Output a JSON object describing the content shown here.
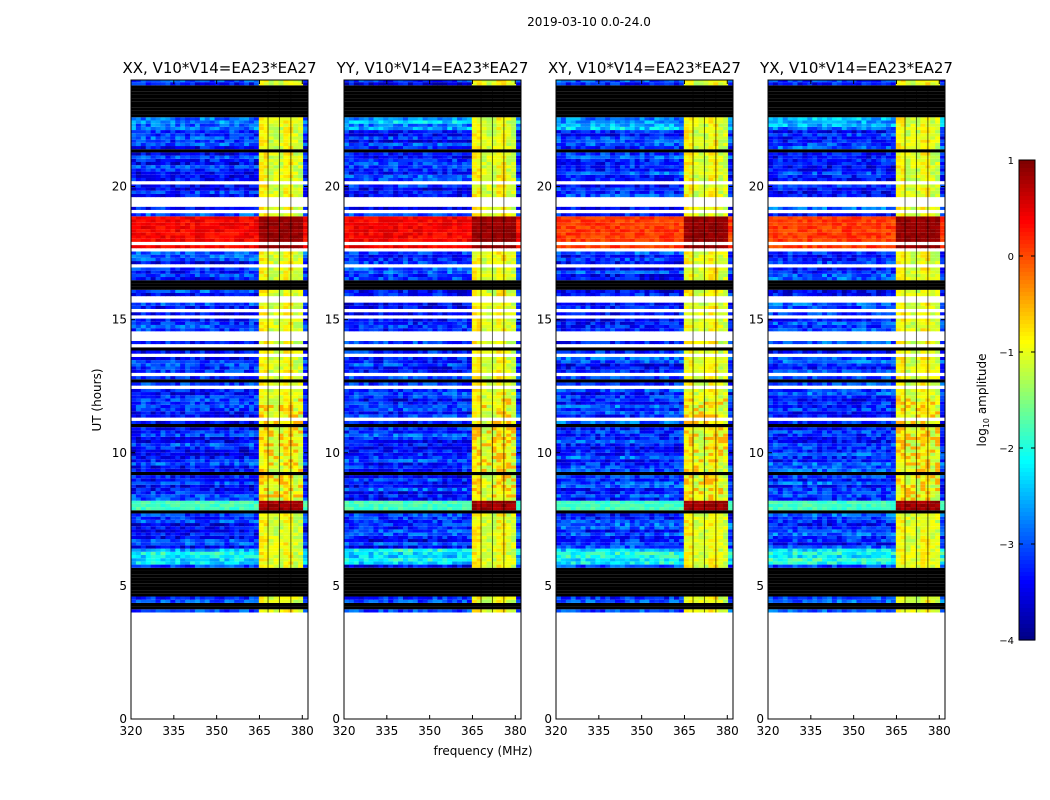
{
  "chart_data": {
    "type": "heatmap",
    "suptitle": "2019-03-10 0.0-24.0",
    "xlabel": "frequency (MHz)",
    "ylabel": "UT (hours)",
    "xlim": [
      320,
      382
    ],
    "ylim": [
      0,
      24
    ],
    "x_ticks": [
      "320",
      "335",
      "350",
      "365",
      "380"
    ],
    "y_ticks": [
      "0",
      "5",
      "10",
      "15",
      "20"
    ],
    "colorbar": {
      "label": "log",
      "label_sub": "10",
      "label_rest": " amplitude",
      "range": [
        -4,
        1
      ],
      "ticks": [
        "1",
        "0",
        "−1",
        "−2",
        "−3",
        "−4"
      ],
      "colormap": "jet"
    },
    "panels": [
      {
        "title": "XX, V10*V14=EA23*EA27"
      },
      {
        "title": "YY, V10*V14=EA23*EA27"
      },
      {
        "title": "XY, V10*V14=EA23*EA27"
      },
      {
        "title": "YX, V10*V14=EA23*EA27"
      }
    ],
    "features": {
      "no_data_hours": [
        0,
        4.0
      ],
      "flagged_blocks_hours": [
        [
          22.6,
          23.6
        ],
        [
          4.1,
          4.3
        ],
        [
          4.5,
          5.6
        ]
      ],
      "rfi_band_mhz": [
        364,
        380
      ],
      "strong_event_hours": [
        17.6,
        18.8
      ],
      "strong_event_2_hours": [
        7.8,
        8.1
      ]
    }
  }
}
